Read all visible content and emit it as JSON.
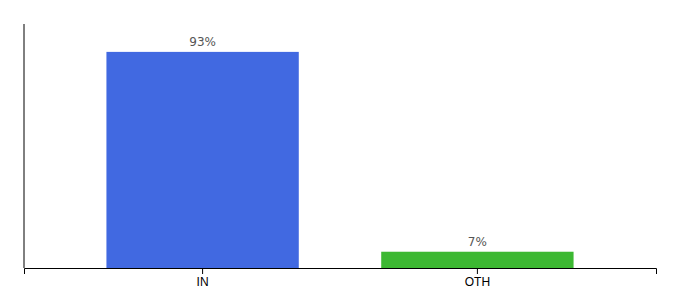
{
  "chart_data": {
    "type": "bar",
    "categories": [
      "IN",
      "OTH"
    ],
    "values": [
      93,
      7
    ],
    "value_labels": [
      "93%",
      "7%"
    ],
    "colors": [
      "#4169e1",
      "#3cb832"
    ],
    "ylim": [
      0,
      105
    ],
    "data_labels": true,
    "tick_labels": "x",
    "grid": false
  }
}
